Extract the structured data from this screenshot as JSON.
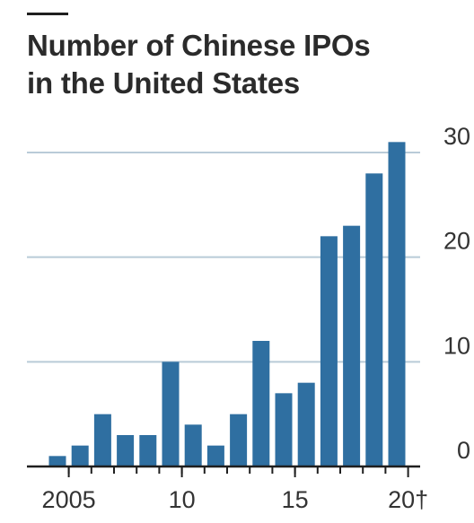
{
  "title_lines": [
    "Number of Chinese IPOs",
    "in the United States"
  ],
  "colors": {
    "bar": "#2f6fa1",
    "grid": "#b9cbd8",
    "axis": "#1f1f1f",
    "text": "#333333"
  },
  "chart_data": {
    "type": "bar",
    "title": "Number of Chinese IPOs in the United States",
    "xlabel": "",
    "ylabel": "",
    "categories": [
      "2005",
      "2006",
      "2007",
      "2008",
      "2009",
      "2010",
      "2011",
      "2012",
      "2013",
      "2014",
      "2015",
      "2016",
      "2017",
      "2018",
      "2019",
      "2020"
    ],
    "values": [
      1,
      2,
      5,
      3,
      3,
      10,
      4,
      2,
      5,
      12,
      7,
      8,
      22,
      23,
      28,
      31
    ],
    "ylim": [
      0,
      30
    ],
    "y_ticks": [
      0,
      10,
      20,
      30
    ],
    "x_tick_labels": [
      {
        "category": "2005",
        "text": "2005"
      },
      {
        "category": "2010",
        "text": "10"
      },
      {
        "category": "2015",
        "text": "15"
      },
      {
        "category": "2020",
        "text": "20†"
      }
    ],
    "grid": true,
    "y_axis_side": "right"
  }
}
